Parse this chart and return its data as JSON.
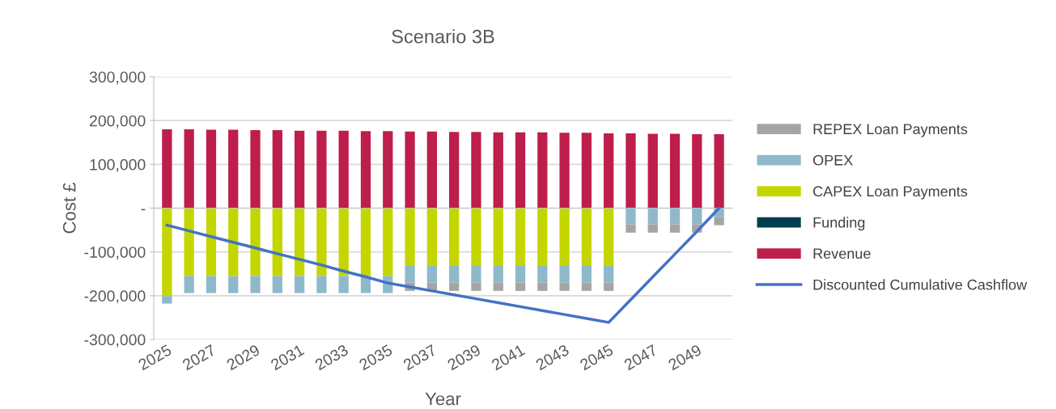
{
  "chart_data": {
    "type": "bar",
    "stacked": true,
    "title": "Scenario 3B",
    "xlabel": "Year",
    "ylabel": "Cost £",
    "categories": [
      "2025",
      null,
      "2027",
      null,
      "2029",
      null,
      "2031",
      null,
      "2033",
      null,
      "2035",
      null,
      "2037",
      null,
      "2039",
      null,
      "2041",
      null,
      "2043",
      null,
      "2045",
      null,
      "2047",
      null,
      "2049",
      null
    ],
    "series": [
      {
        "name": "Revenue",
        "color": "#be1e4b",
        "values": [
          180000,
          180000,
          179000,
          179000,
          178000,
          178000,
          177000,
          177000,
          177000,
          176000,
          176000,
          175000,
          175000,
          174000,
          174000,
          173000,
          173000,
          173000,
          172000,
          172000,
          171000,
          171000,
          170000,
          170000,
          169000,
          169000
        ]
      },
      {
        "name": "Funding",
        "color": "#003f4f",
        "values": [
          null,
          null,
          null,
          null,
          null,
          null,
          null,
          null,
          null,
          null,
          null,
          null,
          null,
          null,
          null,
          null,
          null,
          null,
          null,
          null,
          null,
          null,
          null,
          null,
          null,
          null
        ]
      },
      {
        "name": "CAPEX Loan Payments",
        "color": "#c4d600",
        "values": [
          -201000,
          -155000,
          -155000,
          -155000,
          -155000,
          -155000,
          -155000,
          -155000,
          -155000,
          -155000,
          -155000,
          -132000,
          -132000,
          -132000,
          -132000,
          -132000,
          -132000,
          -132000,
          -132000,
          -132000,
          -132000,
          null,
          null,
          null,
          null,
          null
        ]
      },
      {
        "name": "OPEX",
        "color": "#8fb9cb",
        "values": [
          -17000,
          -39000,
          -39000,
          -39000,
          -39000,
          -39000,
          -39000,
          -39000,
          -39000,
          -39000,
          -39000,
          -38000,
          -38000,
          -38000,
          -38000,
          -38000,
          -38000,
          -38000,
          -38000,
          -38000,
          -38000,
          -37000,
          -37000,
          -37000,
          -37000,
          -21000
        ]
      },
      {
        "name": "REPEX Loan Payments",
        "color": "#a5a5a5",
        "values": [
          null,
          null,
          null,
          null,
          null,
          null,
          null,
          null,
          null,
          null,
          null,
          -19000,
          -19000,
          -19000,
          -19000,
          -19000,
          -19000,
          -19000,
          -19000,
          -19000,
          -19000,
          -19000,
          -19000,
          -19000,
          -19000,
          -18000
        ]
      },
      {
        "name": "Discounted Cumulative Cashflow",
        "type": "line",
        "color": "#4472c4",
        "values": [
          -39000,
          -52000,
          -65000,
          -78000,
          -91000,
          -104000,
          -117000,
          -130000,
          -144000,
          -157000,
          -171000,
          -180000,
          -189000,
          -198000,
          -207000,
          -216000,
          -225000,
          -234000,
          -243000,
          -252000,
          -261000,
          -209000,
          -157000,
          -105000,
          -53000,
          0
        ]
      }
    ],
    "ylim": [
      -300000,
      300000
    ],
    "yticks": [
      {
        "value": -300000,
        "label": "-300,000"
      },
      {
        "value": -200000,
        "label": "-200,000"
      },
      {
        "value": -100000,
        "label": "-100,000"
      },
      {
        "value": 0,
        "label": "-"
      },
      {
        "value": 100000,
        "label": "100,000"
      },
      {
        "value": 200000,
        "label": "200,000"
      },
      {
        "value": 300000,
        "label": "300,000"
      }
    ],
    "grid": "y",
    "legend": "right"
  }
}
